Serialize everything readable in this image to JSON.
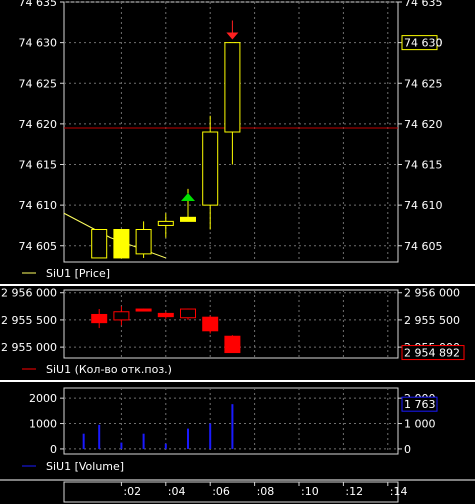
{
  "colors": {
    "background": "#000000",
    "grid": "#6f6f6f",
    "frame": "#d8d8d8",
    "separator": "#ffffff",
    "candle": "#ffff00",
    "red": "#ff0000",
    "blue": "#1a1aff",
    "up_arrow": "#00e000",
    "down_arrow": "#ff2020",
    "ma_line": "#ffff60"
  },
  "chart_data": [
    {
      "type": "candlestick",
      "panel": "price",
      "legend": "SiU1 [Price]",
      "ylim": [
        74603,
        74635
      ],
      "yticks": [
        74605,
        74610,
        74615,
        74620,
        74625,
        74630,
        74635
      ],
      "ytick_labels": [
        "74 605",
        "74 610",
        "74 615",
        "74 620",
        "74 625",
        "74 630",
        "74 635"
      ],
      "last_value_label": "74 630",
      "level_line": 74619.5,
      "candles": [
        {
          "slot": 1,
          "open": 74607,
          "high": 74607,
          "low": 74603.5,
          "close": 74603.5,
          "filled": false
        },
        {
          "slot": 2,
          "open": 74607,
          "high": 74607,
          "low": 74603.5,
          "close": 74603.5,
          "filled": true
        },
        {
          "slot": 3,
          "open": 74604,
          "high": 74608,
          "low": 74603.5,
          "close": 74607,
          "filled": false
        },
        {
          "slot": 4,
          "open": 74607.5,
          "high": 74609,
          "low": 74606,
          "close": 74608,
          "filled": false
        },
        {
          "slot": 5,
          "open": 74608,
          "high": 74612,
          "low": 74608,
          "close": 74608.5,
          "filled": true
        },
        {
          "slot": 6,
          "open": 74610,
          "high": 74621,
          "low": 74607,
          "close": 74619,
          "filled": false
        },
        {
          "slot": 7,
          "open": 74619,
          "high": 74630,
          "low": 74615,
          "close": 74630,
          "filled": false
        }
      ],
      "markers": [
        {
          "slot": 5,
          "type": "buy-arrow",
          "value": 74611
        },
        {
          "slot": 7,
          "type": "sell-arrow",
          "value": 74631
        }
      ],
      "ma_line": [
        [
          0,
          74609
        ],
        [
          1.5,
          74606
        ],
        [
          4,
          74603.5
        ]
      ]
    },
    {
      "type": "candlestick",
      "panel": "open-interest",
      "legend": "SiU1 (Кол-во отк.поз.)",
      "ylim": [
        2954800,
        2956050
      ],
      "yticks": [
        2955000,
        2955500,
        2956000
      ],
      "ytick_labels": [
        "2 955 000",
        "2 955 500",
        "2 956 000"
      ],
      "last_value_label": "2 954 892",
      "candles": [
        {
          "slot": 1,
          "open": 2955600,
          "high": 2955700,
          "low": 2955350,
          "close": 2955450,
          "filled": true
        },
        {
          "slot": 2,
          "open": 2955650,
          "high": 2955750,
          "low": 2955400,
          "close": 2955500,
          "filled": false
        },
        {
          "slot": 3,
          "open": 2955700,
          "high": 2955710,
          "low": 2955690,
          "close": 2955690,
          "filled": true
        },
        {
          "slot": 4,
          "open": 2955620,
          "high": 2955650,
          "low": 2955520,
          "close": 2955560,
          "filled": true
        },
        {
          "slot": 5,
          "open": 2955700,
          "high": 2955710,
          "low": 2955500,
          "close": 2955540,
          "filled": false
        },
        {
          "slot": 6,
          "open": 2955550,
          "high": 2955580,
          "low": 2955250,
          "close": 2955300,
          "filled": true
        },
        {
          "slot": 7,
          "open": 2955200,
          "high": 2955220,
          "low": 2954900,
          "close": 2954900,
          "filled": true
        }
      ]
    },
    {
      "type": "bar",
      "panel": "volume",
      "legend": "SiU1 [Volume]",
      "ylim": [
        -200,
        2400
      ],
      "yticks": [
        0,
        1000,
        2000
      ],
      "left_tick_labels": [
        "0",
        "1000",
        "2000"
      ],
      "right_tick_labels": [
        "0",
        "1 000",
        "2 000"
      ],
      "last_value_label": "1 763",
      "values": [
        {
          "slot": 0.3,
          "value": 600
        },
        {
          "slot": 1,
          "value": 950
        },
        {
          "slot": 2,
          "value": 250
        },
        {
          "slot": 3,
          "value": 600
        },
        {
          "slot": 4,
          "value": 200
        },
        {
          "slot": 5,
          "value": 800
        },
        {
          "slot": 6,
          "value": 1000
        },
        {
          "slot": 7,
          "value": 1763
        }
      ]
    }
  ],
  "time_axis": {
    "labels": [
      ":02",
      ":04",
      ":06",
      ":08",
      ":10",
      ":12",
      ":14"
    ],
    "slots": [
      2,
      4,
      6,
      8,
      10,
      12,
      14
    ]
  }
}
